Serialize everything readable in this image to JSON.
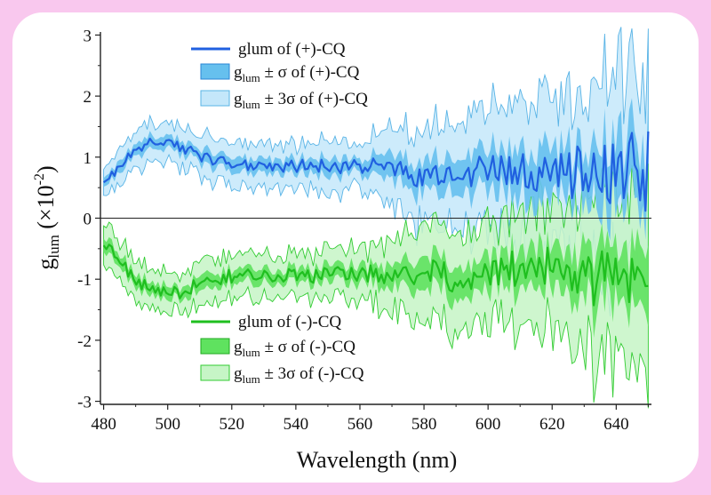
{
  "chart_data": {
    "type": "line",
    "title": "",
    "xlabel": "Wavelength (nm)",
    "ylabel": "glum (×10^-2)",
    "ylabel_main": "g",
    "ylabel_sub": "lum",
    "ylabel_unit_open": " (×10",
    "ylabel_exp": "-2",
    "ylabel_unit_close": ")",
    "xlim": [
      479,
      651
    ],
    "ylim": [
      -3.05,
      3.05
    ],
    "x_ticks": [
      480,
      500,
      520,
      540,
      560,
      580,
      600,
      620,
      640
    ],
    "x_tick_labels": [
      "480",
      "500",
      "520",
      "540",
      "560",
      "580",
      "600",
      "620",
      "640"
    ],
    "y_ticks": [
      3,
      2,
      1,
      0,
      -1,
      -2,
      -3
    ],
    "y_tick_labels": [
      "3",
      "2",
      "1",
      "0",
      "-1",
      "-2",
      "-3"
    ],
    "zero_line": true,
    "grid": false,
    "series": [
      {
        "name": "glum of (+)-CQ",
        "color": "#2060e0",
        "band1_color": "#66c0ee",
        "band3_color": "#c4e7fa",
        "band_edge_color": "#5ab4e6",
        "anchors": [
          [
            480,
            0.6
          ],
          [
            485,
            0.85
          ],
          [
            490,
            1.1
          ],
          [
            495,
            1.25
          ],
          [
            500,
            1.25
          ],
          [
            505,
            1.15
          ],
          [
            510,
            1.0
          ],
          [
            520,
            0.9
          ],
          [
            540,
            0.85
          ],
          [
            560,
            0.85
          ],
          [
            575,
            0.8
          ],
          [
            580,
            0.65
          ],
          [
            590,
            0.75
          ],
          [
            600,
            0.75
          ],
          [
            610,
            0.75
          ],
          [
            620,
            0.8
          ],
          [
            630,
            0.75
          ],
          [
            640,
            0.75
          ],
          [
            650,
            0.8
          ]
        ],
        "noise": [
          [
            480,
            0.08
          ],
          [
            560,
            0.12
          ],
          [
            575,
            0.2
          ],
          [
            610,
            0.32
          ],
          [
            630,
            0.5
          ],
          [
            650,
            0.7
          ]
        ],
        "sigma": [
          [
            480,
            0.1
          ],
          [
            560,
            0.13
          ],
          [
            575,
            0.25
          ],
          [
            610,
            0.35
          ],
          [
            630,
            0.45
          ],
          [
            650,
            0.6
          ]
        ]
      },
      {
        "name": "glum of (-)-CQ",
        "color": "#1fbf1f",
        "band1_color": "#5fe25f",
        "band3_color": "#c6f5c6",
        "band_edge_color": "#33cc33",
        "anchors": [
          [
            480,
            -0.35
          ],
          [
            485,
            -0.7
          ],
          [
            490,
            -1.0
          ],
          [
            495,
            -1.2
          ],
          [
            500,
            -1.25
          ],
          [
            505,
            -1.2
          ],
          [
            510,
            -1.05
          ],
          [
            520,
            -0.95
          ],
          [
            540,
            -0.95
          ],
          [
            560,
            -0.9
          ],
          [
            575,
            -0.95
          ],
          [
            580,
            -0.85
          ],
          [
            590,
            -1.0
          ],
          [
            600,
            -0.95
          ],
          [
            610,
            -0.8
          ],
          [
            620,
            -0.8
          ],
          [
            630,
            -1.0
          ],
          [
            640,
            -0.9
          ],
          [
            650,
            -1.1
          ]
        ],
        "noise": [
          [
            480,
            0.1
          ],
          [
            560,
            0.13
          ],
          [
            575,
            0.2
          ],
          [
            610,
            0.3
          ],
          [
            630,
            0.45
          ],
          [
            650,
            0.6
          ]
        ],
        "sigma": [
          [
            480,
            0.1
          ],
          [
            560,
            0.13
          ],
          [
            575,
            0.22
          ],
          [
            610,
            0.3
          ],
          [
            630,
            0.42
          ],
          [
            650,
            0.55
          ]
        ]
      }
    ],
    "legend": {
      "plus": {
        "line_label": "glum of (+)-CQ",
        "band1_prefix": "g",
        "band1_sub": "lum",
        "band1_rest": " ± σ  of (+)-CQ",
        "band3_prefix": "g",
        "band3_sub": "lum",
        "band3_rest": " ± 3σ  of (+)-CQ"
      },
      "minus": {
        "line_label": "glum of (-)-CQ",
        "band1_prefix": "g",
        "band1_sub": "lum",
        "band1_rest": " ± σ  of (-)-CQ",
        "band3_prefix": "g",
        "band3_sub": "lum",
        "band3_rest": " ± 3σ  of (-)-CQ"
      },
      "placement": "top-left and bottom-left inside plot"
    }
  }
}
